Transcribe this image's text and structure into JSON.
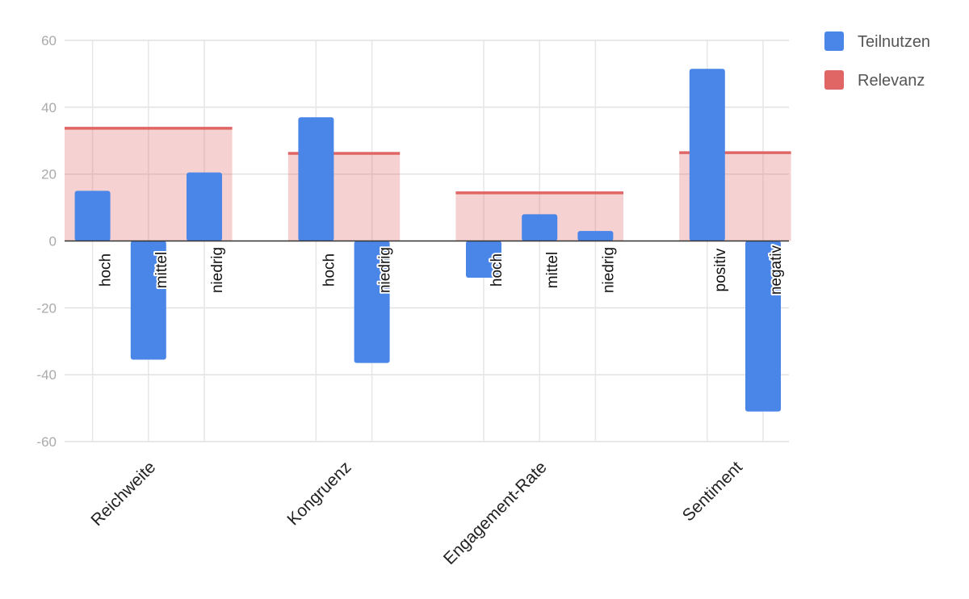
{
  "chart_data": {
    "type": "bar",
    "ylim": [
      -60,
      60
    ],
    "yticks": [
      60,
      40,
      20,
      0,
      -20,
      -40,
      -60
    ],
    "tick_labels": [
      "60",
      "40",
      "20",
      "0",
      "-20",
      "-40",
      "-60"
    ],
    "grid": true,
    "legend_position": "top-right",
    "legend": [
      {
        "label": "Teilnutzen",
        "color": "#4a86e8"
      },
      {
        "label": "Relevanz",
        "color": "#e06666"
      }
    ],
    "groups": [
      {
        "category": "Reichweite",
        "relevance": 33.7,
        "levels": [
          {
            "label": "hoch",
            "value": 15
          },
          {
            "label": "mittel",
            "value": -35.5
          },
          {
            "label": "niedrig",
            "value": 20.5
          }
        ]
      },
      {
        "category": "Kongruenz",
        "relevance": 26.2,
        "levels": [
          {
            "label": "hoch",
            "value": 37
          },
          {
            "label": "niedrig",
            "value": -36.5
          }
        ]
      },
      {
        "category": "Engagement-Rate",
        "relevance": 14.4,
        "levels": [
          {
            "label": "hoch",
            "value": -11
          },
          {
            "label": "mittel",
            "value": 8
          },
          {
            "label": "niedrig",
            "value": 3
          }
        ]
      },
      {
        "category": "Sentiment",
        "relevance": 26.4,
        "levels": [
          {
            "label": "positiv",
            "value": 51.5
          },
          {
            "label": "negativ",
            "value": -51
          }
        ]
      }
    ]
  }
}
